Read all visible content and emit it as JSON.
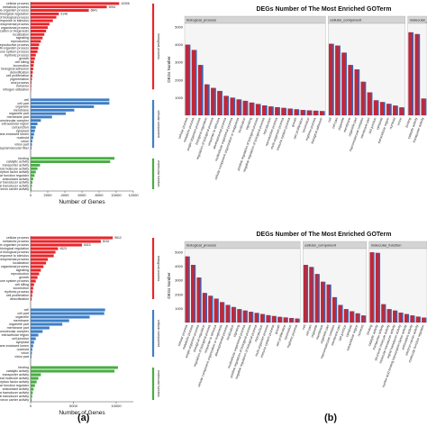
{
  "panel_labels": [
    "(a)",
    "(b)"
  ],
  "colors": {
    "biological_process": "#e8262b",
    "cellular_component": "#3d7fc6",
    "molecular_function": "#4aac45",
    "bar_red": "#c02838",
    "bar_blue": "#3a64b8",
    "facet_strip": "#d4d4d4",
    "panel_bg": "#f5f5f5"
  },
  "chart_data": [
    {
      "id": "a-top",
      "type": "bar",
      "orientation": "horizontal",
      "xlabel": "Number of Genes",
      "xlim": [
        0,
        12000
      ],
      "xticks": [
        "0",
        "2000",
        "4000",
        "6000",
        "8000",
        "10000",
        "12000"
      ],
      "groups": [
        {
          "name": "biological process",
          "categories": [
            "cellular process",
            "metabolic process",
            "single-organism process",
            "biological regulation",
            "regulation of biological process",
            "response to stimulus",
            "developmental process",
            "multicellular organismal process",
            "cellular component organization or biogenesis",
            "localization",
            "signaling",
            "reproduction",
            "reproductive process",
            "multi-organism process",
            "immune system process",
            "rhythmic process",
            "growth",
            "cell killing",
            "locomotion",
            "biological adhesion",
            "detoxification",
            "cell proliferation",
            "pigmentation",
            "viral process",
            "behavior",
            "nitrogen utilization"
          ],
          "values": [
            10350,
            8900,
            6800,
            3300,
            3000,
            2600,
            2200,
            2000,
            1800,
            1600,
            1400,
            1200,
            1000,
            900,
            800,
            600,
            500,
            400,
            350,
            300,
            250,
            200,
            150,
            100,
            80,
            60
          ]
        },
        {
          "name": "cellular component",
          "categories": [
            "cell",
            "cell part",
            "organelle",
            "membrane",
            "organelle part",
            "membrane part",
            "macromolecular complex",
            "extracellular region",
            "cell junction",
            "symplast",
            "membrane-enclosed lumen",
            "nucleoid",
            "virion",
            "virion part",
            "supramolecular fiber"
          ],
          "values": [
            9200,
            9200,
            7400,
            5100,
            4100,
            2500,
            1200,
            800,
            600,
            500,
            400,
            300,
            200,
            150,
            100
          ]
        },
        {
          "name": "molecular function",
          "categories": [
            "binding",
            "catalytic activity",
            "transporter activity",
            "structural molecule activity",
            "nucleic acid binding transcription factor activity",
            "molecular function regulator",
            "antioxidant activity",
            "molecular transducer activity",
            "signal transducer activity",
            "electron carrier activity"
          ],
          "values": [
            9800,
            9300,
            1100,
            800,
            600,
            450,
            300,
            200,
            150,
            100
          ]
        }
      ],
      "value_labels": [
        "10306",
        "9054",
        "6841",
        "5148",
        "3300",
        "2971"
      ]
    },
    {
      "id": "a-bottom",
      "type": "bar",
      "orientation": "horizontal",
      "xlabel": "Number of Genes",
      "xlim": [
        0,
        12000
      ],
      "xticks": [
        "0",
        "5000",
        "10000"
      ],
      "groups": [
        {
          "name": "biological process",
          "categories": [
            "cellular process",
            "metabolic process",
            "single-organism process",
            "biological regulation",
            "regulation of biological process",
            "response to stimulus",
            "developmental process",
            "localization",
            "multicellular organismal process",
            "signaling",
            "reproduction",
            "growth",
            "immune system process",
            "cell killing",
            "locomotion",
            "rhythmic process",
            "cell proliferation",
            "detoxification"
          ],
          "values": [
            9600,
            8200,
            6000,
            3200,
            2900,
            2700,
            2000,
            1800,
            1500,
            1200,
            1000,
            800,
            600,
            400,
            300,
            250,
            180,
            120
          ]
        },
        {
          "name": "cellular component",
          "categories": [
            "cell",
            "cell part",
            "organelle",
            "membrane",
            "organelle part",
            "membrane part",
            "macromolecular complex",
            "extracellular region",
            "cell junction",
            "symplast",
            "membrane-enclosed lumen",
            "nucleoid",
            "virion",
            "virion part"
          ],
          "values": [
            8700,
            8600,
            6900,
            4500,
            3700,
            2200,
            1400,
            900,
            600,
            400,
            300,
            200,
            150,
            100
          ]
        },
        {
          "name": "molecular function",
          "categories": [
            "binding",
            "catalytic activity",
            "transporter activity",
            "structural molecule activity",
            "nucleic acid binding transcription factor activity",
            "molecular function regulator",
            "antioxidant activity",
            "molecular transducer activity",
            "signal transducer activity",
            "electron carrier activity"
          ],
          "values": [
            10200,
            9800,
            1200,
            900,
            700,
            500,
            350,
            250,
            180,
            120
          ]
        }
      ],
      "value_labels": [
        "9612",
        "8232",
        "6015",
        "4523",
        "3706"
      ]
    },
    {
      "id": "b-top",
      "type": "bar",
      "title": "DEGs Number of The Most Enriched GOTerm",
      "ylabel": "DEGs Number",
      "ylim": [
        0,
        5000
      ],
      "yticks": [
        "1000",
        "2000",
        "3000",
        "4000",
        "5000"
      ],
      "facets": [
        {
          "name": "biological_process",
          "categories": [
            "cellular process",
            "metabolic process",
            "single-organism process",
            "biological regulation",
            "regulation of biological process",
            "response to stimulus",
            "developmental process",
            "multicellular organismal process",
            "cellular component organization or biogenesis",
            "localization",
            "signaling",
            "positive regulation of biological process",
            "negative regulation of biological process",
            "reproduction",
            "reproductive process",
            "multi-organism process",
            "immune system process",
            "growth",
            "cell proliferation",
            "locomotion",
            "rhythmic process",
            "biological adhesion"
          ],
          "values": [
            4000,
            3700,
            2850,
            1750,
            1550,
            1380,
            1100,
            1000,
            900,
            820,
            720,
            640,
            560,
            500,
            460,
            420,
            380,
            340,
            300,
            280,
            260,
            240
          ]
        },
        {
          "name": "cellular_component",
          "categories": [
            "cell",
            "cell part",
            "organelle",
            "membrane",
            "organelle part",
            "macromolecular complex",
            "membrane part",
            "cell junction",
            "symplast",
            "extracellular region",
            "nucleoid",
            "virion"
          ],
          "values": [
            4050,
            3950,
            3550,
            2850,
            2600,
            1900,
            1300,
            850,
            750,
            650,
            550,
            450
          ]
        },
        {
          "name": "molecular_function",
          "categories": [
            "binding",
            "catalytic activity",
            "transporter activity"
          ],
          "values": [
            4700,
            4600,
            950
          ]
        }
      ]
    },
    {
      "id": "b-bottom",
      "type": "bar",
      "title": "DEGs Number of The Most Enriched GOTerm",
      "ylabel": "DEGs Number",
      "ylim": [
        0,
        5000
      ],
      "yticks": [
        "1000",
        "2000",
        "3000",
        "4000",
        "5000"
      ],
      "facets": [
        {
          "name": "biological_process",
          "categories": [
            "cellular process",
            "metabolic process",
            "single-organism process",
            "biological regulation",
            "regulation of biological process",
            "response to stimulus",
            "cellular component organization or biogenesis",
            "developmental process",
            "localization",
            "signaling",
            "multicellular organismal process",
            "positive regulation of biological process",
            "negative regulation of biological process",
            "reproduction",
            "multi-organism process",
            "immune system process",
            "growth",
            "cell proliferation",
            "locomotion",
            "rhythmic process"
          ],
          "values": [
            4700,
            4100,
            3200,
            2100,
            1900,
            1700,
            1450,
            1250,
            1100,
            950,
            850,
            760,
            680,
            600,
            520,
            460,
            400,
            360,
            320,
            280
          ]
        },
        {
          "name": "cellular_component",
          "categories": [
            "cell",
            "cell part",
            "organelle",
            "membrane",
            "organelle part",
            "macromolecular complex",
            "membrane part",
            "cell junction",
            "symplast",
            "extracellular region",
            "nucleoid"
          ],
          "values": [
            4100,
            3950,
            3450,
            2900,
            2700,
            1800,
            1250,
            950,
            800,
            650,
            500
          ]
        },
        {
          "name": "molecular_function",
          "categories": [
            "binding",
            "catalytic activity",
            "transporter activity",
            "structural molecule activity",
            "molecular transducer activity",
            "signal transducer activity",
            "nucleic acid binding transcription factor activity",
            "antioxidant activity",
            "electron carrier activity",
            "molecular function regulator"
          ],
          "values": [
            5000,
            4950,
            1300,
            950,
            850,
            700,
            600,
            500,
            420,
            350
          ]
        }
      ]
    }
  ]
}
